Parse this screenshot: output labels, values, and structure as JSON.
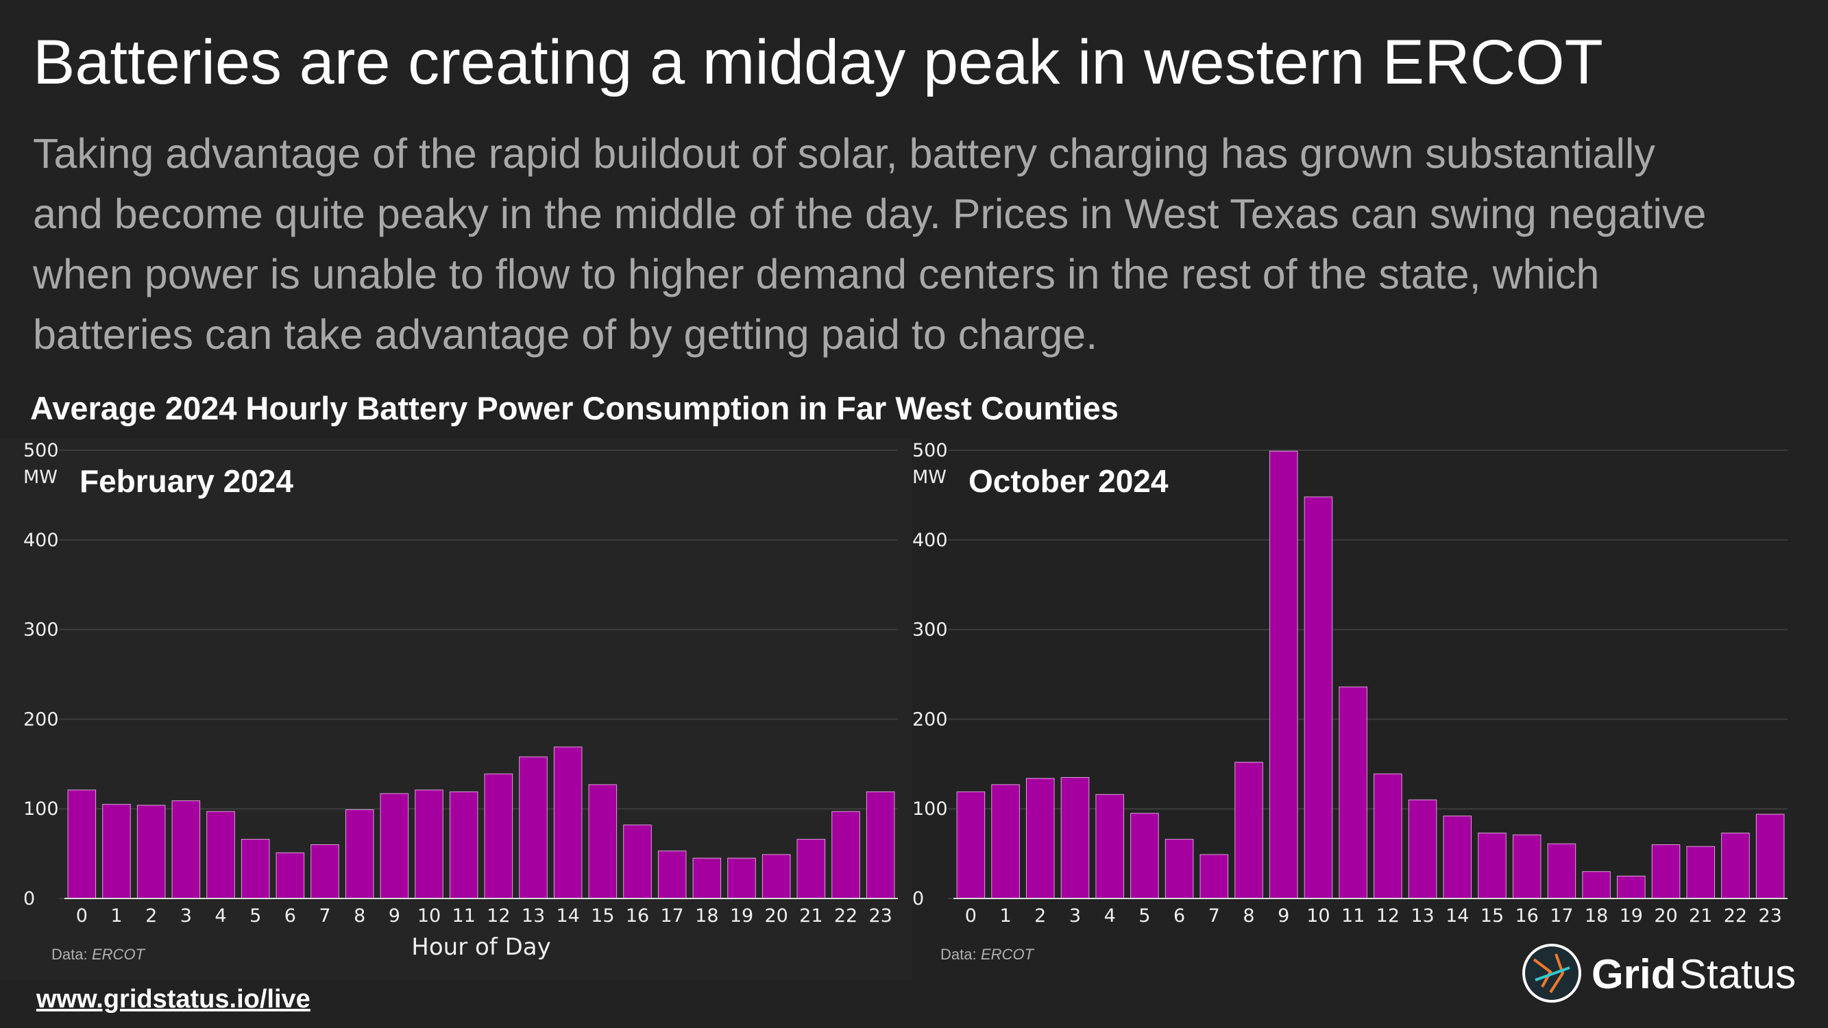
{
  "header": {
    "title": "Batteries are creating a midday peak in western ERCOT",
    "subtitle": [
      "Taking advantage of the rapid buildout of solar, battery charging has grown substantially",
      "and become quite peaky in the middle of the day. Prices in West Texas can swing negative",
      "when power is unable to flow to higher demand centers in the rest of the state, which",
      "batteries can take advantage of by getting paid to charge."
    ],
    "chart_heading": "Average 2024 Hourly Battery Power Consumption in Far West Counties"
  },
  "chart_data": [
    {
      "type": "bar",
      "title": "February 2024",
      "y_unit": "MW",
      "x_label": "Hour of Day",
      "source_label": "Data:",
      "source": "ERCOT",
      "color": "#a5009f",
      "grid": true,
      "categories": [
        "0",
        "1",
        "2",
        "3",
        "4",
        "5",
        "6",
        "7",
        "8",
        "9",
        "10",
        "11",
        "12",
        "13",
        "14",
        "15",
        "16",
        "17",
        "18",
        "19",
        "20",
        "21",
        "22",
        "23"
      ],
      "values": [
        121,
        105,
        104,
        109,
        97,
        66,
        51,
        60,
        99,
        117,
        121,
        119,
        139,
        158,
        169,
        127,
        82,
        53,
        45,
        45,
        49,
        66,
        97,
        119
      ],
      "ylim": [
        0,
        500
      ],
      "yticks": [
        0,
        100,
        200,
        300,
        400,
        500
      ]
    },
    {
      "type": "bar",
      "title": "October 2024",
      "y_unit": "MW",
      "source_label": "Data:",
      "source": "ERCOT",
      "color": "#a5009f",
      "grid": true,
      "categories": [
        "0",
        "1",
        "2",
        "3",
        "4",
        "5",
        "6",
        "7",
        "8",
        "9",
        "10",
        "11",
        "12",
        "13",
        "14",
        "15",
        "16",
        "17",
        "18",
        "19",
        "20",
        "21",
        "22",
        "23"
      ],
      "values": [
        119,
        127,
        134,
        135,
        116,
        95,
        66,
        49,
        152,
        499,
        448,
        236,
        139,
        110,
        92,
        73,
        71,
        61,
        30,
        25,
        60,
        58,
        73,
        94
      ],
      "ylim": [
        0,
        500
      ],
      "yticks": [
        0,
        100,
        200,
        300,
        400,
        500
      ]
    }
  ],
  "footer": {
    "url": "www.gridstatus.io/live",
    "logo_bold": "Grid",
    "logo_regular": "Status"
  }
}
